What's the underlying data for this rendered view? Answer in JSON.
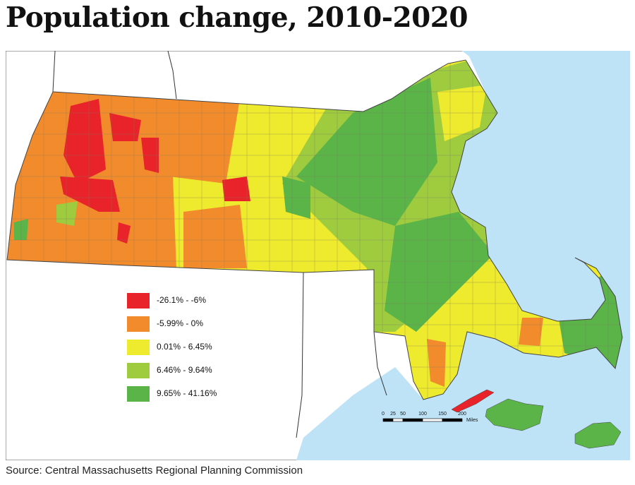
{
  "title": "Population change, 2010-2020",
  "legend": {
    "items": [
      {
        "label": "-26.1% - -6%",
        "color": "#e8242a"
      },
      {
        "label": "-5.99% - 0%",
        "color": "#f28b2b"
      },
      {
        "label": "0.01% - 6.45%",
        "color": "#eeea2e"
      },
      {
        "label": "6.46% - 9.64%",
        "color": "#9fcb3f"
      },
      {
        "label": "9.65% - 41.16%",
        "color": "#5bb448"
      }
    ]
  },
  "scale_bar": {
    "ticks": [
      0,
      25,
      50,
      100,
      150,
      200
    ],
    "unit": "Miles"
  },
  "source": "Source: Central Massachusetts Regional Planning Commission"
}
